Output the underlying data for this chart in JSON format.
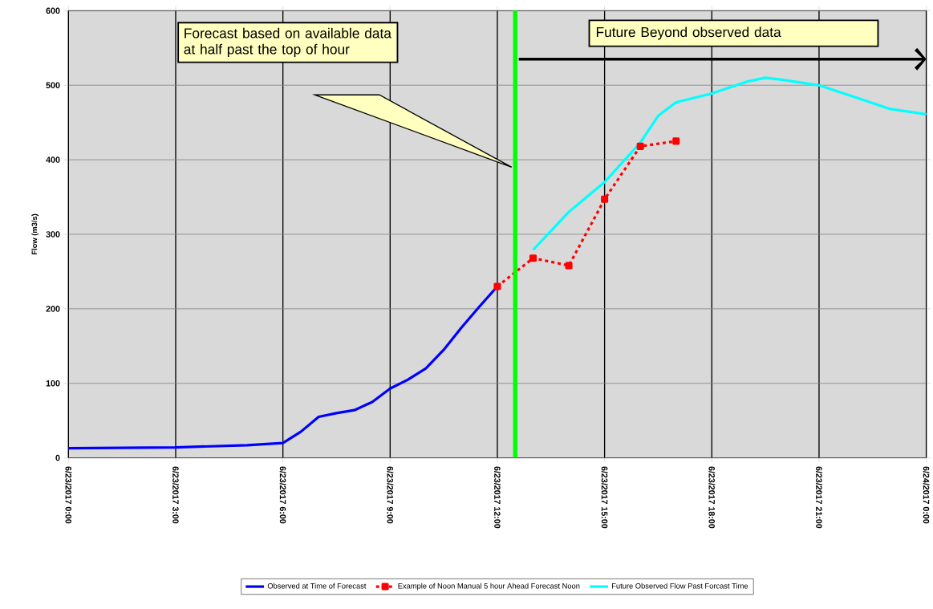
{
  "chart_data": {
    "type": "line",
    "ylabel": "Flow (m3/s)",
    "xlim": [
      "2017-06-23T00:00",
      "2017-06-24T00:00"
    ],
    "ylim": [
      0,
      600
    ],
    "xticks": [
      {
        "value": "2017-06-23T00:00",
        "label": "6/23/2017 0:00"
      },
      {
        "value": "2017-06-23T03:00",
        "label": "6/23/2017 3:00"
      },
      {
        "value": "2017-06-23T06:00",
        "label": "6/23/2017 6:00"
      },
      {
        "value": "2017-06-23T09:00",
        "label": "6/23/2017 9:00"
      },
      {
        "value": "2017-06-23T12:00",
        "label": "6/23/2017 12:00"
      },
      {
        "value": "2017-06-23T15:00",
        "label": "6/23/2017 15:00"
      },
      {
        "value": "2017-06-23T18:00",
        "label": "6/23/2017 18:00"
      },
      {
        "value": "2017-06-23T21:00",
        "label": "6/23/2017 21:00"
      },
      {
        "value": "2017-06-24T00:00",
        "label": "6/24/2017 0:00"
      }
    ],
    "yticks": [
      0,
      100,
      200,
      300,
      400,
      500,
      600
    ],
    "grid": true,
    "legend": "bottom",
    "annotations": [
      "Forecast based on available data at half past the top of hour",
      "Future Beyond observed data"
    ],
    "ref_lines": [
      {
        "axis": "x",
        "value": "2017-06-23T12:30",
        "color": "#00ff00"
      }
    ],
    "series": [
      {
        "name": "Observed at Time of Forecast",
        "color": "#0000ff",
        "marker": "none",
        "line_style": "solid",
        "x": [
          "2017-06-23T00:00",
          "2017-06-23T03:00",
          "2017-06-23T05:00",
          "2017-06-23T06:00",
          "2017-06-23T06:30",
          "2017-06-23T07:00",
          "2017-06-23T07:30",
          "2017-06-23T08:00",
          "2017-06-23T08:30",
          "2017-06-23T09:00",
          "2017-06-23T09:30",
          "2017-06-23T10:00",
          "2017-06-23T10:30",
          "2017-06-23T11:00",
          "2017-06-23T11:30",
          "2017-06-23T12:00"
        ],
        "values": [
          13,
          14,
          17,
          20,
          35,
          55,
          60,
          64,
          75,
          93,
          105,
          120,
          145,
          175,
          203,
          230
        ]
      },
      {
        "name": "Example of Noon Manual 5 hour Ahead Forecast Noon",
        "color": "#ff0000",
        "marker": "square",
        "line_style": "dashed",
        "x": [
          "2017-06-23T12:00",
          "2017-06-23T13:00",
          "2017-06-23T14:00",
          "2017-06-23T15:00",
          "2017-06-23T16:00",
          "2017-06-23T17:00"
        ],
        "values": [
          230,
          268,
          258,
          347,
          418,
          425
        ]
      },
      {
        "name": "Future Observed Flow Past Forcast Time",
        "color": "#00ffff",
        "marker": "none",
        "line_style": "solid",
        "x": [
          "2017-06-23T13:00",
          "2017-06-23T14:00",
          "2017-06-23T15:00",
          "2017-06-23T16:00",
          "2017-06-23T16:30",
          "2017-06-23T17:00",
          "2017-06-23T18:00",
          "2017-06-23T19:00",
          "2017-06-23T19:30",
          "2017-06-23T20:00",
          "2017-06-23T21:00",
          "2017-06-23T22:00",
          "2017-06-23T23:00",
          "2017-06-24T00:00"
        ],
        "values": [
          279,
          330,
          370,
          423,
          459,
          477,
          489,
          505,
          510,
          507,
          500,
          484,
          468,
          461
        ]
      }
    ]
  }
}
